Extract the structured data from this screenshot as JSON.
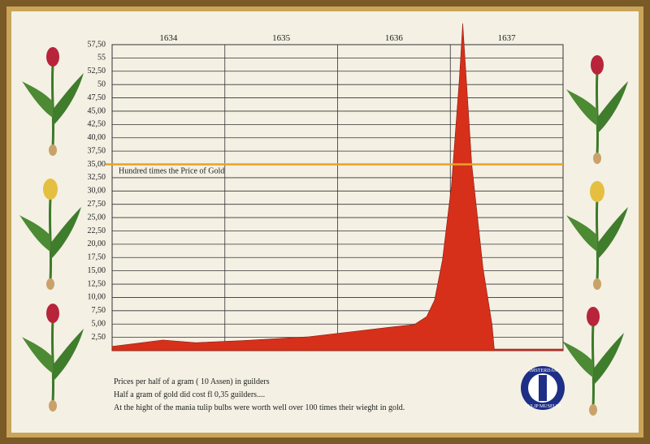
{
  "chart_data": {
    "type": "area",
    "x": [
      1634.0,
      1634.45,
      1634.74,
      1635.17,
      1635.74,
      1636.18,
      1636.46,
      1636.68,
      1636.79,
      1636.86,
      1636.93,
      1637.01,
      1637.08,
      1637.11,
      1637.19,
      1637.29,
      1637.37,
      1637.39,
      1638.0
    ],
    "series": [
      {
        "color": "#d6301b",
        "values": [
          0.8,
          2.0,
          1.5,
          1.9,
          2.6,
          3.7,
          4.4,
          4.9,
          6.4,
          9.5,
          17,
          31,
          51,
          61.5,
          35,
          15.5,
          4.9,
          0.3,
          0.3
        ]
      }
    ],
    "xlim": [
      1634,
      1638
    ],
    "xticks": [
      1634,
      1635,
      1636,
      1637
    ],
    "ylim": [
      0,
      57.5
    ],
    "yticks": [
      {
        "value": 2.5,
        "label": "2,50"
      },
      {
        "value": 5,
        "label": "5,00"
      },
      {
        "value": 7.5,
        "label": "7,50"
      },
      {
        "value": 10,
        "label": "10,00"
      },
      {
        "value": 12.5,
        "label": "12,50"
      },
      {
        "value": 15,
        "label": "15,00"
      },
      {
        "value": 17.5,
        "label": "17,50"
      },
      {
        "value": 20,
        "label": "20,00"
      },
      {
        "value": 22.5,
        "label": "22,50"
      },
      {
        "value": 25,
        "label": "25,00"
      },
      {
        "value": 27.5,
        "label": "27,50"
      },
      {
        "value": 30,
        "label": "30,00"
      },
      {
        "value": 32.5,
        "label": "32,50"
      },
      {
        "value": 35,
        "label": "35,00"
      },
      {
        "value": 37.5,
        "label": "37,50"
      },
      {
        "value": 40,
        "label": "40,00"
      },
      {
        "value": 42.5,
        "label": "42,50"
      },
      {
        "value": 45,
        "label": "45,00"
      },
      {
        "value": 47.5,
        "label": "47,50"
      },
      {
        "value": 50,
        "label": "50"
      },
      {
        "value": 52.5,
        "label": "52,50"
      },
      {
        "value": 55,
        "label": "55"
      },
      {
        "value": 57.5,
        "label": "57,50"
      }
    ],
    "grid": true,
    "reference_line": {
      "value": 35,
      "label": "Hundred times the Price of Gold",
      "color": "#e8a323"
    },
    "notes": [
      "Prices per half of a gram ( 10 Assen) in guilders",
      "Half a gram of gold did cost  fl 0,35 guilders....",
      "At the hight of the mania tulip bulbs were worth well over 100 times their wieght in gold."
    ],
    "logo": {
      "top": "AMSTERDAM",
      "bottom": "TULIP MUSEUM"
    }
  }
}
